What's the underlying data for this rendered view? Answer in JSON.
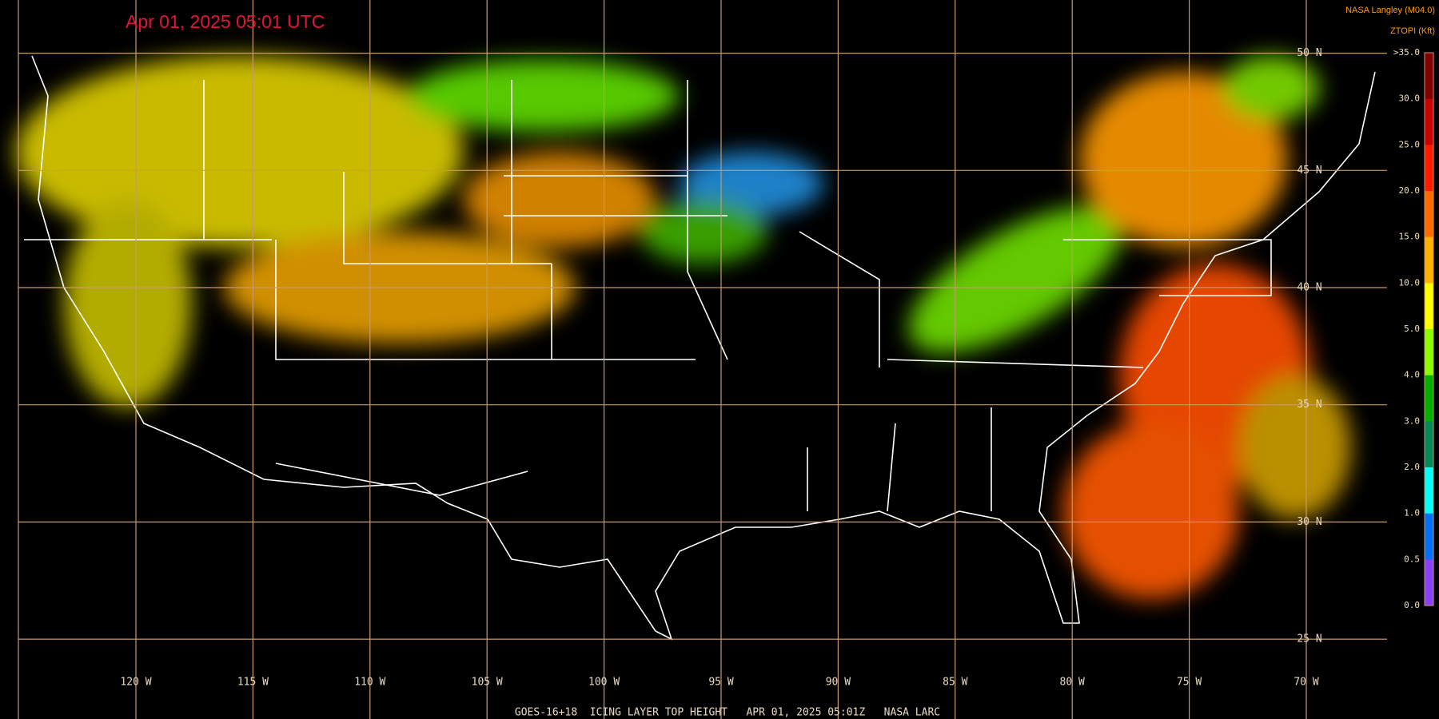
{
  "header": {
    "title": "Apr 01, 2025 05:01 UTC",
    "credit": "NASA Langley (M04.0)"
  },
  "map": {
    "longitude_labels": [
      "120 W",
      "115 W",
      "110 W",
      "105 W",
      "100 W",
      "95 W",
      "90 W",
      "85 W",
      "80 W",
      "75 W",
      "70 W"
    ],
    "latitude_labels": [
      "50 N",
      "45 N",
      "40 N",
      "35 N",
      "30 N",
      "25 N"
    ]
  },
  "legend": {
    "title": "ZTOPI (Kft)",
    "labels": [
      ">35.0",
      "30.0",
      "25.0",
      "20.0",
      "15.0",
      "10.0",
      "5.0",
      "4.0",
      "3.0",
      "2.0",
      "1.0",
      "0.5",
      "0.0"
    ],
    "colors": [
      "#800000",
      "#c80000",
      "#ff1a00",
      "#ff6a00",
      "#ffb000",
      "#ffff00",
      "#88ff00",
      "#00b000",
      "#008a5a",
      "#00ffff",
      "#0070ff",
      "#8a40ff"
    ]
  },
  "footer": {
    "caption": "GOES-16+18  ICING LAYER TOP HEIGHT   APR 01, 2025 05:01Z   NASA LARC"
  }
}
